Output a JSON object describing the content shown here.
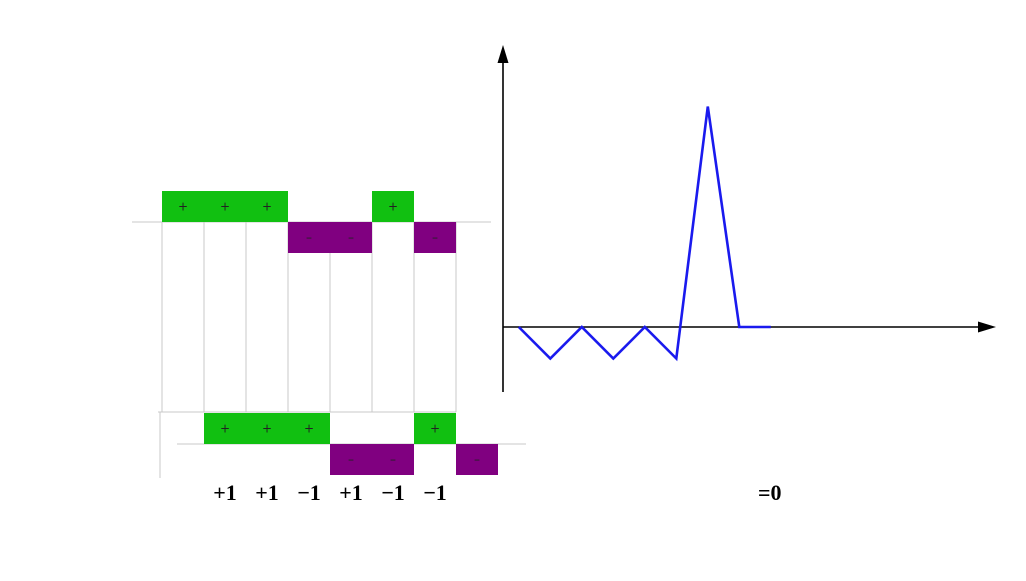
{
  "colors": {
    "positive": "#11c011",
    "negative": "#800080",
    "grid": "#c8c8c8",
    "axis": "#000000",
    "curve": "#1a1aee"
  },
  "top_sequence": {
    "chips": [
      {
        "sign": "+",
        "label": "+"
      },
      {
        "sign": "+",
        "label": "+"
      },
      {
        "sign": "+",
        "label": "+"
      },
      {
        "sign": "-",
        "label": "–"
      },
      {
        "sign": "-",
        "label": "–"
      },
      {
        "sign": "+",
        "label": "+"
      },
      {
        "sign": "-",
        "label": "–"
      }
    ]
  },
  "shifted_sequence": {
    "chips": [
      {
        "sign": "+",
        "label": "+"
      },
      {
        "sign": "+",
        "label": "+"
      },
      {
        "sign": "+",
        "label": "+"
      },
      {
        "sign": "-",
        "label": "–"
      },
      {
        "sign": "-",
        "label": "–"
      },
      {
        "sign": "+",
        "label": "+"
      },
      {
        "sign": "-",
        "label": "–"
      }
    ]
  },
  "products": [
    "+1",
    "+1",
    "−1",
    "+1",
    "−1",
    "−1"
  ],
  "result_label": "=0",
  "chart_data": {
    "type": "line",
    "x": [
      -3,
      -2.5,
      -2,
      -1.5,
      -1,
      -0.5,
      0,
      0.5,
      1
    ],
    "y": [
      0,
      -1,
      0,
      -1,
      0,
      -1,
      7,
      0,
      0
    ],
    "xlim": [
      -3.25,
      9
    ],
    "ylim": [
      -2,
      9
    ],
    "grid": false
  }
}
